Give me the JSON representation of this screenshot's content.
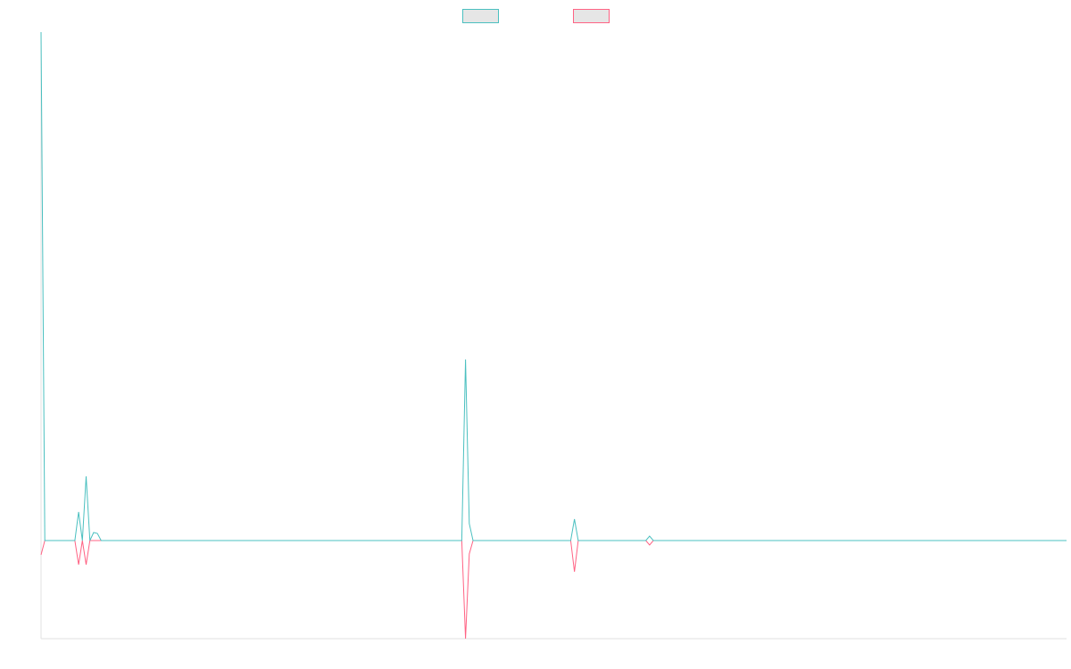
{
  "chart_data": {
    "type": "line",
    "x": [
      0,
      1,
      9,
      10,
      11,
      12,
      13,
      14,
      15,
      16,
      112,
      113,
      114,
      115,
      141,
      142,
      143,
      161,
      162,
      163,
      273
    ],
    "series": [
      {
        "color": "#4bc0c0",
        "values": [
          57,
          0,
          0,
          3.2,
          0,
          7.2,
          0,
          0.9,
          0.8,
          0,
          0,
          20.3,
          1.9,
          0,
          0,
          2.4,
          0,
          0,
          0.5,
          0,
          0
        ]
      },
      {
        "color": "#ff6384",
        "values": [
          -1.6,
          0,
          0,
          -2.7,
          0,
          -2.7,
          0,
          0,
          0,
          0,
          0,
          -11,
          -1.5,
          0,
          0,
          -3.5,
          0,
          0,
          -0.5,
          0,
          0
        ]
      }
    ],
    "xlim": [
      0,
      273
    ],
    "ylim": [
      -11,
      57
    ],
    "grid": false,
    "legend": "top"
  }
}
